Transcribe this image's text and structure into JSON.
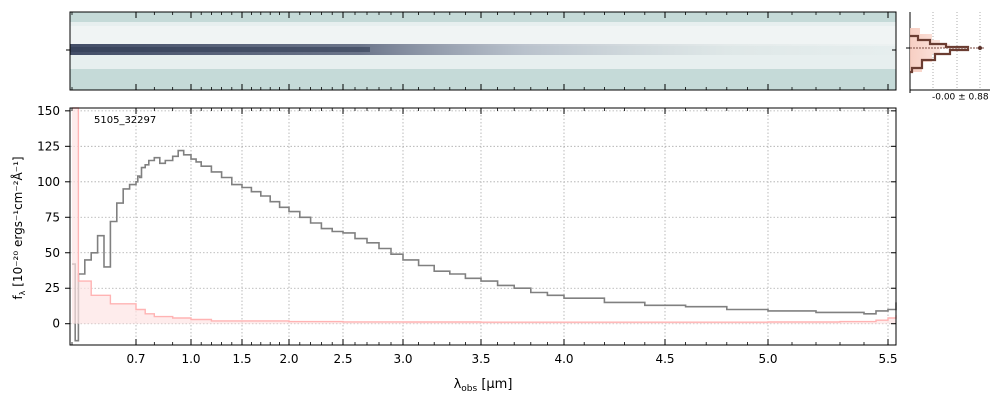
{
  "chart_data": {
    "type": "line",
    "object_id": "5105_32297",
    "xlabel_main": "λ",
    "xlabel_sub": "obs",
    "xlabel_unit": "[μm]",
    "ylabel_text": "f",
    "ylabel_sub": "λ",
    "ylabel_unit": "[10⁻²⁰ ergs⁻¹cm⁻²Å⁻¹]",
    "x_scale": "nonlinear (prism dispersion)",
    "xlim": [
      0.6,
      5.52
    ],
    "ylim": [
      -15,
      152
    ],
    "grid": true,
    "x_ticks": [
      {
        "value": 0.7,
        "label": "0.7"
      },
      {
        "value": 1.0,
        "label": "1.0"
      },
      {
        "value": 1.5,
        "label": "1.5"
      },
      {
        "value": 2.0,
        "label": "2.0"
      },
      {
        "value": 2.5,
        "label": "2.5"
      },
      {
        "value": 3.0,
        "label": "3.0"
      },
      {
        "value": 3.5,
        "label": "3.5"
      },
      {
        "value": 4.0,
        "label": "4.0"
      },
      {
        "value": 4.5,
        "label": "4.5"
      },
      {
        "value": 5.0,
        "label": "5.0"
      },
      {
        "value": 5.5,
        "label": "5.5"
      }
    ],
    "y_ticks": [
      {
        "value": 0,
        "label": "0"
      },
      {
        "value": 25,
        "label": "25"
      },
      {
        "value": 50,
        "label": "50"
      },
      {
        "value": 75,
        "label": "75"
      },
      {
        "value": 100,
        "label": "100"
      },
      {
        "value": 125,
        "label": "125"
      },
      {
        "value": 150,
        "label": "150"
      }
    ],
    "series": [
      {
        "role": "flux",
        "color": "#808080",
        "x": [
          0.6,
          0.605,
          0.61,
          0.62,
          0.63,
          0.64,
          0.65,
          0.66,
          0.67,
          0.68,
          0.69,
          0.7,
          0.71,
          0.72,
          0.73,
          0.75,
          0.77,
          0.8,
          0.83,
          0.86,
          0.9,
          0.93,
          0.96,
          1.0,
          1.05,
          1.1,
          1.2,
          1.3,
          1.4,
          1.5,
          1.6,
          1.7,
          1.8,
          1.9,
          2.0,
          2.1,
          2.2,
          2.3,
          2.4,
          2.5,
          2.6,
          2.7,
          2.8,
          2.9,
          3.0,
          3.1,
          3.2,
          3.3,
          3.4,
          3.5,
          3.6,
          3.7,
          3.8,
          3.9,
          4.0,
          4.2,
          4.4,
          4.6,
          4.8,
          5.0,
          5.2,
          5.4,
          5.45,
          5.5,
          5.52
        ],
        "y": [
          42,
          -12,
          35,
          45,
          50,
          62,
          40,
          72,
          85,
          95,
          98,
          100,
          104,
          103,
          110,
          112,
          115,
          117,
          113,
          115,
          118,
          122,
          119,
          116,
          114,
          111,
          107,
          103,
          98,
          96,
          93,
          90,
          86,
          82,
          79,
          75,
          71,
          67,
          65,
          64,
          60,
          57,
          53,
          49,
          45,
          41,
          37,
          35,
          32,
          30,
          27,
          25,
          22,
          20,
          18,
          15,
          13,
          12,
          10,
          9,
          8,
          7,
          9,
          10,
          15
        ]
      },
      {
        "role": "error",
        "color": "#ffb3b3",
        "x": [
          0.6,
          0.61,
          0.63,
          0.66,
          0.7,
          0.75,
          0.8,
          0.9,
          1.0,
          1.2,
          1.5,
          2.0,
          2.5,
          3.0,
          3.5,
          4.0,
          4.5,
          5.0,
          5.3,
          5.45,
          5.5,
          5.52
        ],
        "y": [
          152,
          30,
          20,
          14,
          10,
          7,
          5,
          4,
          3,
          2,
          2,
          1.5,
          1.3,
          1.2,
          1.1,
          1.1,
          1.1,
          1.2,
          1.5,
          2.5,
          4,
          6
        ]
      }
    ],
    "histogram_annotation": "-0.00 ± 0.88"
  }
}
